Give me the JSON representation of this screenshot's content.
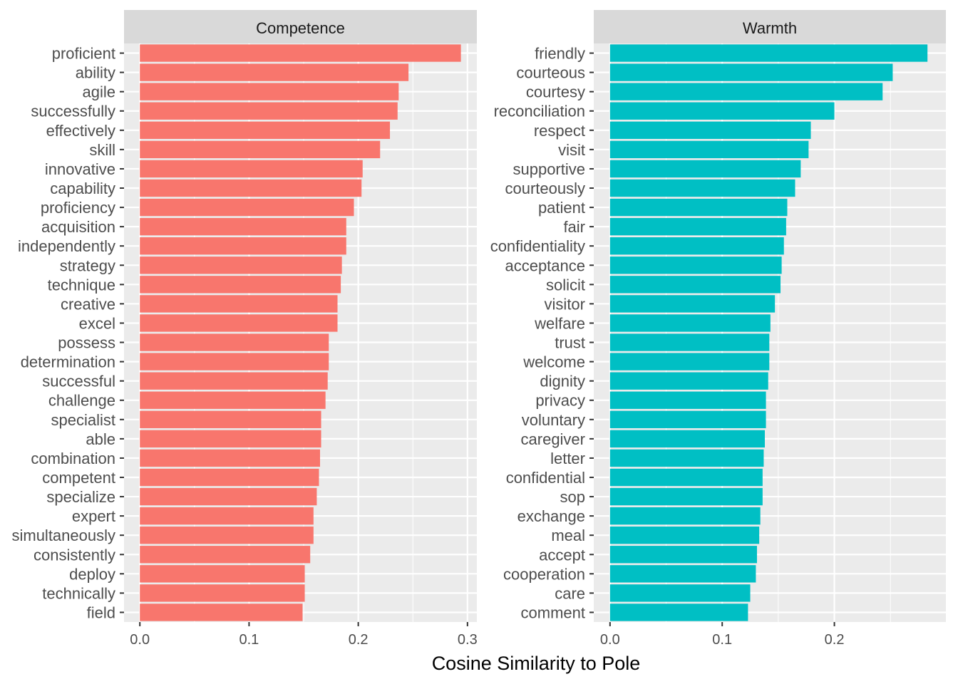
{
  "chart_data": [
    {
      "type": "bar",
      "orientation": "horizontal",
      "title": "Competence",
      "xlabel": "Cosine Similarity to Pole",
      "ylabel": "",
      "xlim": [
        -0.0145,
        0.3086
      ],
      "xticks": [
        0.0,
        0.1,
        0.2,
        0.3
      ],
      "xtick_labels": [
        "0.0",
        "0.1",
        "0.2",
        "0.3"
      ],
      "grid": true,
      "color": "#F8766D",
      "categories": [
        "proficient",
        "ability",
        "agile",
        "successfully",
        "effectively",
        "skill",
        "innovative",
        "capability",
        "proficiency",
        "acquisition",
        "independently",
        "strategy",
        "technique",
        "creative",
        "excel",
        "possess",
        "determination",
        "successful",
        "challenge",
        "specialist",
        "able",
        "combination",
        "competent",
        "specialize",
        "expert",
        "simultaneously",
        "consistently",
        "deploy",
        "technically",
        "field"
      ],
      "values": [
        0.294,
        0.246,
        0.237,
        0.236,
        0.229,
        0.22,
        0.204,
        0.203,
        0.196,
        0.189,
        0.189,
        0.185,
        0.184,
        0.181,
        0.181,
        0.173,
        0.173,
        0.172,
        0.17,
        0.166,
        0.166,
        0.165,
        0.164,
        0.162,
        0.159,
        0.159,
        0.156,
        0.151,
        0.151,
        0.149
      ]
    },
    {
      "type": "bar",
      "orientation": "horizontal",
      "title": "Warmth",
      "xlabel": "Cosine Similarity to Pole",
      "ylabel": "",
      "xlim": [
        -0.0145,
        0.2994
      ],
      "xticks": [
        0.0,
        0.1,
        0.2
      ],
      "xtick_labels": [
        "0.0",
        "0.1",
        "0.2"
      ],
      "grid": true,
      "color": "#00BFC4",
      "categories": [
        "friendly",
        "courteous",
        "courtesy",
        "reconciliation",
        "respect",
        "visit",
        "supportive",
        "courteously",
        "patient",
        "fair",
        "confidentiality",
        "acceptance",
        "solicit",
        "visitor",
        "welfare",
        "trust",
        "welcome",
        "dignity",
        "privacy",
        "voluntary",
        "caregiver",
        "letter",
        "confidential",
        "sop",
        "exchange",
        "meal",
        "accept",
        "cooperation",
        "care",
        "comment"
      ],
      "values": [
        0.283,
        0.252,
        0.243,
        0.2,
        0.179,
        0.177,
        0.17,
        0.165,
        0.158,
        0.157,
        0.155,
        0.153,
        0.152,
        0.147,
        0.143,
        0.142,
        0.142,
        0.141,
        0.139,
        0.139,
        0.138,
        0.137,
        0.136,
        0.136,
        0.134,
        0.133,
        0.131,
        0.13,
        0.125,
        0.123
      ]
    }
  ],
  "axis_title": "Cosine Similarity to Pole",
  "colors": {
    "panel_background": "#EBEBEB",
    "strip_background": "#D9D9D9",
    "grid": "#FFFFFF"
  }
}
